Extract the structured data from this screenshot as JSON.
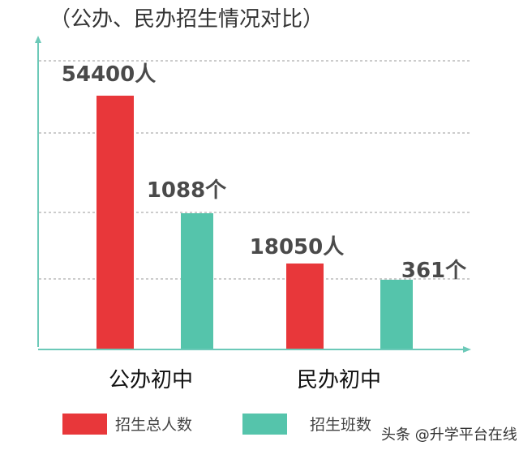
{
  "chart_data": {
    "type": "bar",
    "title": "（公办、民办招生情况对比）",
    "categories": [
      "公办初中",
      "民办初中"
    ],
    "series": [
      {
        "name": "招生总人数",
        "color": "#e8373a",
        "values": [
          54400,
          18050
        ],
        "labels": [
          "54400人",
          "18050人"
        ]
      },
      {
        "name": "招生班数",
        "color": "#55c4ab",
        "values": [
          1088,
          361
        ],
        "labels": [
          "1088个",
          "361个"
        ]
      }
    ],
    "legend_position": "bottom",
    "grid": true,
    "axis_color": "#6cc9b8"
  },
  "watermark": "头条 @升学平台在线"
}
